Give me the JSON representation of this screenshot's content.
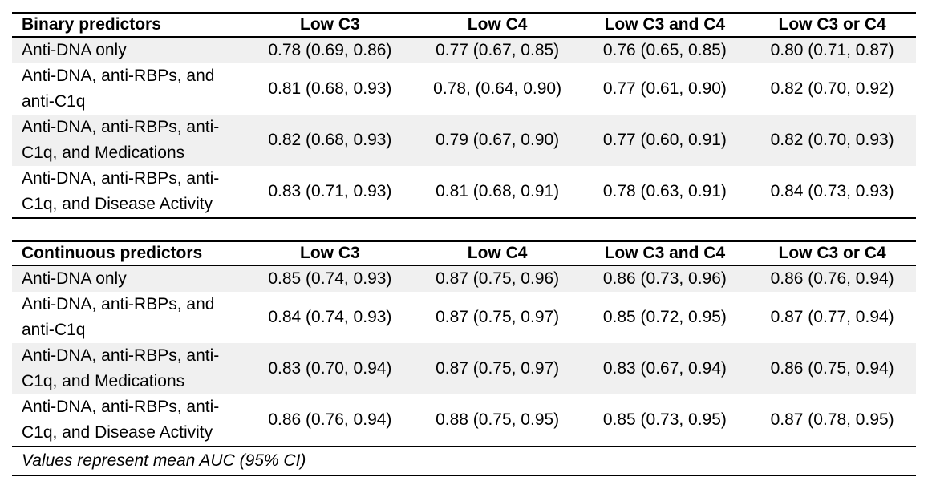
{
  "tables": [
    {
      "name": "binary-predictors-table",
      "columns": [
        "Binary predictors",
        "Low C3",
        "Low C4",
        "Low C3 and C4",
        "Low C3 or C4"
      ],
      "rows": [
        {
          "label": "Anti-DNA only",
          "values": [
            "0.78 (0.69, 0.86)",
            "0.77 (0.67, 0.85)",
            "0.76 (0.65, 0.85)",
            "0.80 (0.71, 0.87)"
          ]
        },
        {
          "label": "Anti-DNA, anti-RBPs, and anti-C1q",
          "values": [
            "0.81 (0.68, 0.93)",
            "0.78, (0.64, 0.90)",
            "0.77 (0.61, 0.90)",
            "0.82 (0.70, 0.92)"
          ]
        },
        {
          "label": "Anti-DNA, anti-RBPs, anti-C1q, and Medications",
          "values": [
            "0.82 (0.68, 0.93)",
            "0.79 (0.67, 0.90)",
            "0.77 (0.60, 0.91)",
            "0.82 (0.70, 0.93)"
          ]
        },
        {
          "label": "Anti-DNA, anti-RBPs, anti-C1q, and Disease Activity",
          "values": [
            "0.83 (0.71, 0.93)",
            "0.81 (0.68, 0.91)",
            "0.78 (0.63, 0.91)",
            "0.84 (0.73, 0.93)"
          ]
        }
      ]
    },
    {
      "name": "continuous-predictors-table",
      "columns": [
        "Continuous predictors",
        "Low C3",
        "Low C4",
        "Low C3 and C4",
        "Low C3 or C4"
      ],
      "rows": [
        {
          "label": "Anti-DNA only",
          "values": [
            "0.85 (0.74, 0.93)",
            "0.87 (0.75, 0.96)",
            "0.86 (0.73, 0.96)",
            "0.86 (0.76, 0.94)"
          ]
        },
        {
          "label": "Anti-DNA, anti-RBPs, and anti-C1q",
          "values": [
            "0.84 (0.74, 0.93)",
            "0.87 (0.75, 0.97)",
            "0.85 (0.72, 0.95)",
            "0.87 (0.77, 0.94)"
          ]
        },
        {
          "label": "Anti-DNA, anti-RBPs, anti-C1q, and Medications",
          "values": [
            "0.83 (0.70, 0.94)",
            "0.87 (0.75, 0.97)",
            "0.83 (0.67, 0.94)",
            "0.86 (0.75, 0.94)"
          ]
        },
        {
          "label": "Anti-DNA, anti-RBPs, anti-C1q, and Disease Activity",
          "values": [
            "0.86 (0.76, 0.94)",
            "0.88 (0.75, 0.95)",
            "0.85 (0.73, 0.95)",
            "0.87 (0.78, 0.95)"
          ]
        }
      ]
    }
  ],
  "footnote": "Values represent mean AUC (95% CI)",
  "colors": {
    "row_shading": "#f0f0f0",
    "border": "#000000",
    "text": "#000000"
  }
}
